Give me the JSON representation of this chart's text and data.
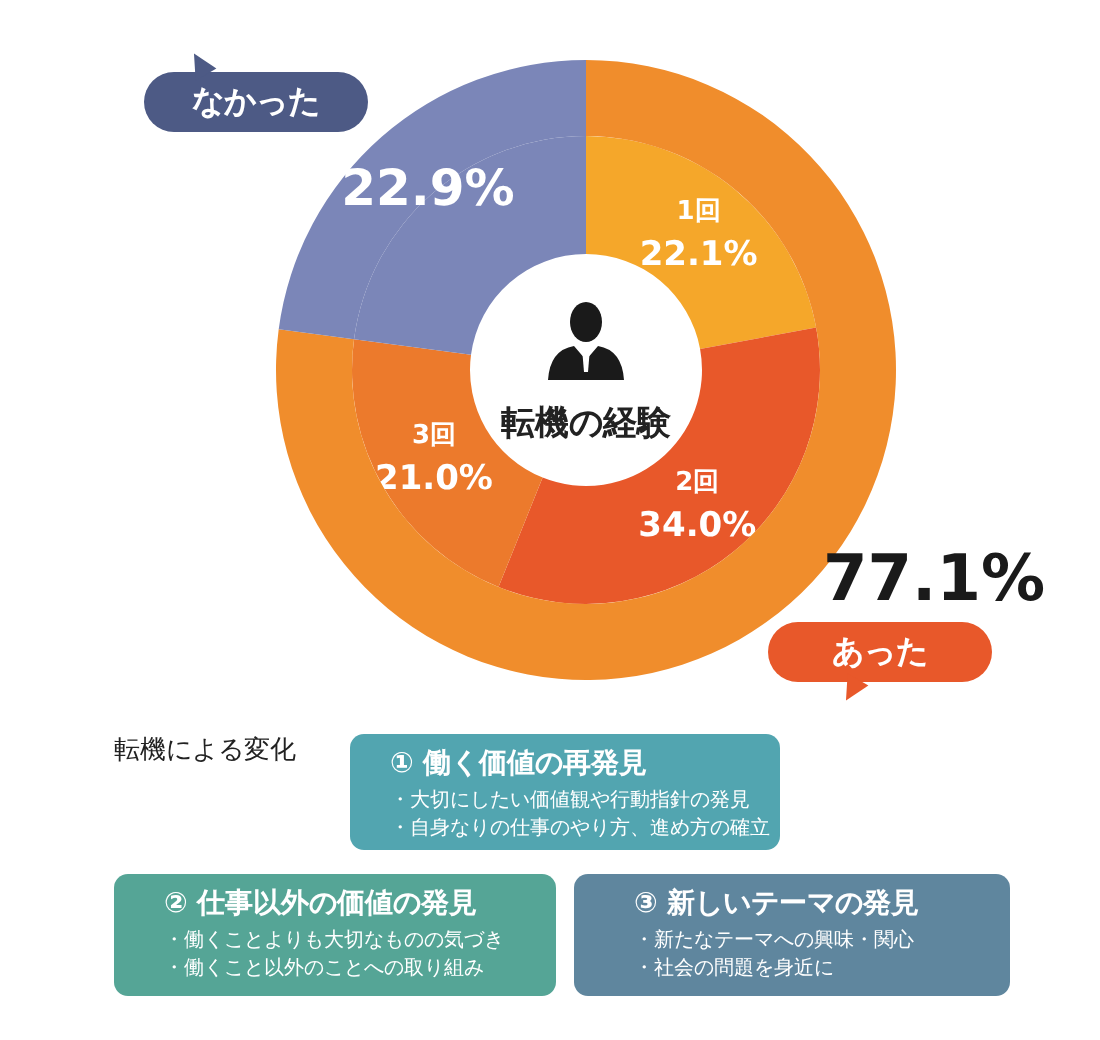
{
  "chart_data": [
    {
      "type": "donut",
      "title": "転機の経験",
      "categories": [
        "あった",
        "なかった"
      ],
      "values": [
        77.1,
        22.9
      ],
      "colors": [
        "#f08d2c",
        "#7b86b8"
      ],
      "value_labels": [
        "77.1%",
        "22.9%"
      ]
    },
    {
      "type": "donut",
      "categories": [
        "1回",
        "2回",
        "3回",
        null
      ],
      "values": [
        22.1,
        34.0,
        21.0,
        22.9
      ],
      "colors": [
        "#f5a72a",
        "#e8582a",
        "#ec7a2c",
        "#7b86b8"
      ],
      "value_labels": [
        "22.1%",
        "34.0%",
        "21.0%",
        null
      ]
    },
    {
      "type": "other",
      "title": "転機による変化",
      "categories": [
        "① 働く価値の再発見",
        "② 仕事以外の価値の発見",
        "③ 新しいテーマの発見"
      ],
      "colors": [
        "#52a5b0",
        "#55a596",
        "#5f869e"
      ],
      "annotations": [
        "・大切にしたい価値観や行動指針の発見",
        "・自身なりの仕事のやり方、進め方の確立",
        "・働くことよりも大切なものの気づき",
        "・働くこと以外のことへの取り組み",
        "・新たなテーマへの興味・関心",
        "・社会の問題を身近に"
      ]
    }
  ]
}
